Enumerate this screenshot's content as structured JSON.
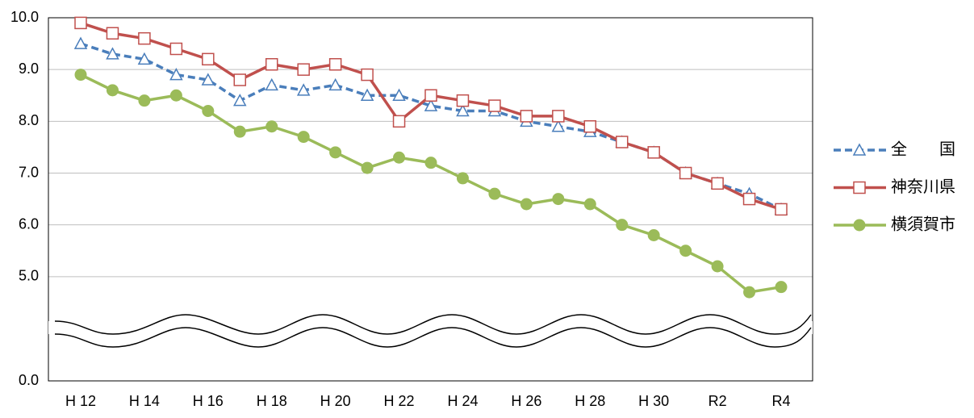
{
  "chart_data": {
    "type": "line",
    "categories": [
      "H 12",
      null,
      "H 14",
      null,
      "H 16",
      null,
      "H 18",
      null,
      "H 20",
      null,
      "H 22",
      null,
      "H 24",
      null,
      "H 26",
      null,
      "H 28",
      null,
      "H 30",
      null,
      "R2",
      null,
      "R4"
    ],
    "series": [
      {
        "name": "全　　国",
        "color": "#4a7ebb",
        "dash": true,
        "marker": "triangle",
        "values": [
          9.5,
          9.3,
          9.2,
          8.9,
          8.8,
          8.4,
          8.7,
          8.6,
          8.7,
          8.5,
          8.5,
          8.3,
          8.2,
          8.2,
          8.0,
          7.9,
          7.8,
          7.6,
          7.4,
          7.0,
          6.8,
          6.6,
          6.3
        ]
      },
      {
        "name": "神奈川県",
        "color": "#c0504d",
        "dash": false,
        "marker": "square",
        "values": [
          9.9,
          9.7,
          9.6,
          9.4,
          9.2,
          8.8,
          9.1,
          9.0,
          9.1,
          8.9,
          8.0,
          8.5,
          8.4,
          8.3,
          8.1,
          8.1,
          7.9,
          7.6,
          7.4,
          7.0,
          6.8,
          6.5,
          6.3
        ]
      },
      {
        "name": "横須賀市",
        "color": "#9bbb59",
        "dash": false,
        "marker": "circle",
        "values": [
          8.9,
          8.6,
          8.4,
          8.5,
          8.2,
          7.8,
          7.9,
          7.7,
          7.4,
          7.1,
          7.3,
          7.2,
          6.9,
          6.6,
          6.4,
          6.5,
          6.4,
          6.0,
          5.8,
          5.5,
          5.2,
          4.7,
          4.8
        ]
      }
    ],
    "ylim": [
      0,
      10
    ],
    "yticks": [
      {
        "value": 0,
        "label": "0.0"
      },
      {
        "value": 5,
        "label": "5.0"
      },
      {
        "value": 6,
        "label": "6.0"
      },
      {
        "value": 7,
        "label": "7.0"
      },
      {
        "value": 8,
        "label": "8.0"
      },
      {
        "value": 9,
        "label": "9.0"
      },
      {
        "value": 10,
        "label": "10.0"
      }
    ],
    "grid": true,
    "legend": "right"
  }
}
